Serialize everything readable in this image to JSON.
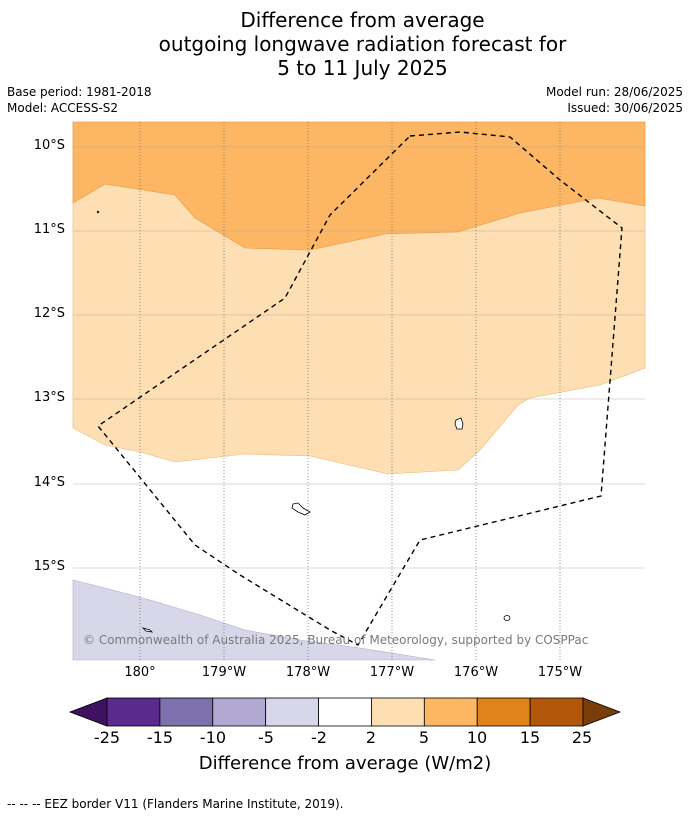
{
  "title": {
    "line1": "Difference from average",
    "line2": "outgoing longwave radiation forecast for",
    "line3": "5 to 11 July 2025"
  },
  "meta": {
    "base_period": "Base period: 1981-2018",
    "model": "Model: ACCESS-S2",
    "model_run": "Model run: 28/06/2025",
    "issued": "Issued: 30/06/2025"
  },
  "axes": {
    "lat_labels": [
      "10°S",
      "11°S",
      "12°S",
      "13°S",
      "14°S",
      "15°S"
    ],
    "lon_labels": [
      "180°",
      "179°W",
      "178°W",
      "177°W",
      "176°W",
      "175°W"
    ]
  },
  "copyright": "© Commonwealth of Australia 2025, Bureau of Meteorology, supported by COSPPac",
  "colorbar": {
    "ticks": [
      "-25",
      "-15",
      "-10",
      "-5",
      "-2",
      "2",
      "5",
      "10",
      "15",
      "25"
    ],
    "colors": [
      "#3f1161",
      "#5a2a8c",
      "#7f70ae",
      "#b1a9d1",
      "#d8d7ea",
      "#ffffff",
      "#fddfb3",
      "#fcb664",
      "#e0831a",
      "#b25709",
      "#7a3e0b"
    ],
    "title": "Difference from average (W/m2)"
  },
  "footer": "--  --  -- EEZ border V11 (Flanders Marine Institute, 2019)."
}
